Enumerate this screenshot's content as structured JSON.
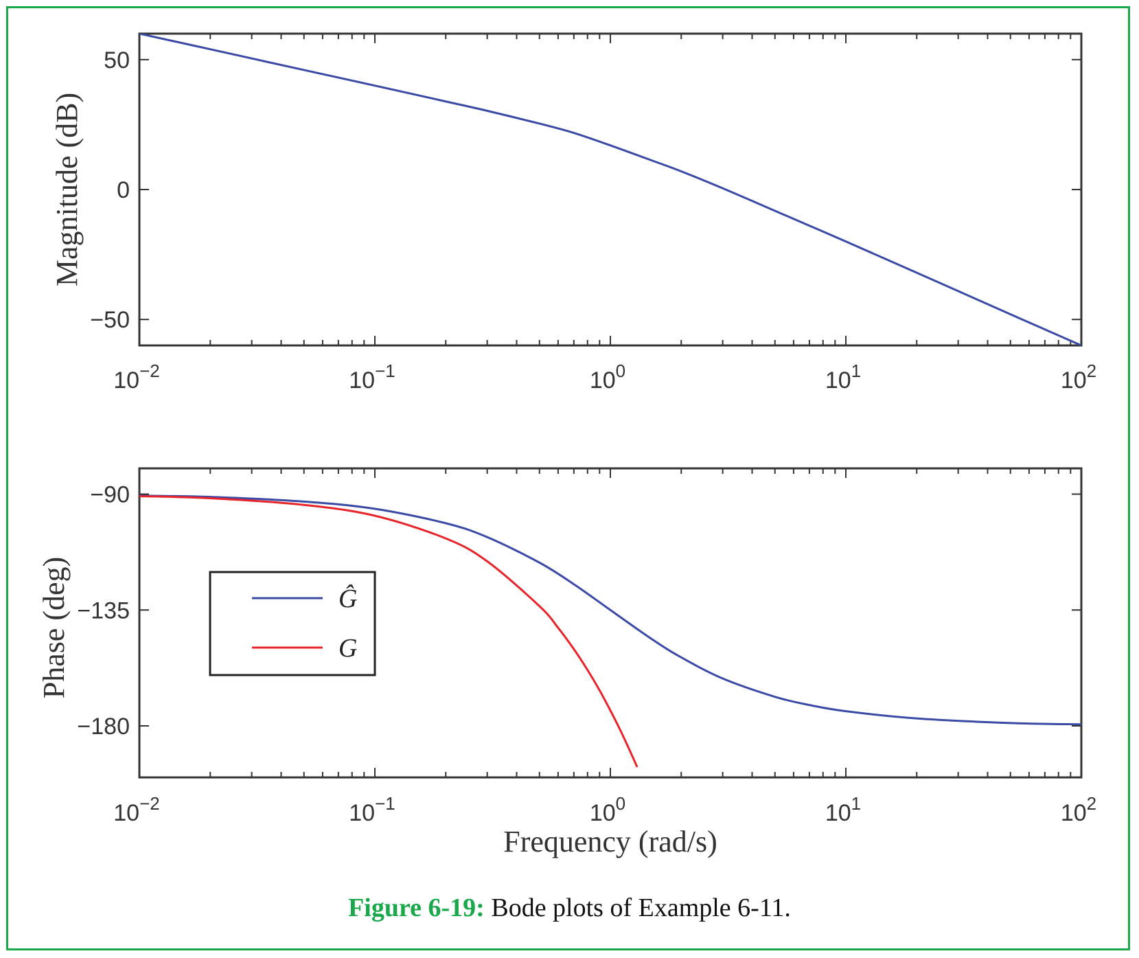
{
  "caption": {
    "label": "Figure 6-19:",
    "text": " Bode plots of Example 6-11."
  },
  "colors": {
    "frame": "#1aa84b",
    "ghat": "#3a4aa6",
    "g": "#e8242b",
    "axes": "#333333"
  },
  "chart_data": [
    {
      "type": "line",
      "scale": {
        "x": "log",
        "y": "linear"
      },
      "xlim": [
        0.01,
        100
      ],
      "ylim": [
        -60,
        60
      ],
      "ylabel": "Magnitude (dB)",
      "xlabel": "",
      "xtick_labels": [
        {
          "value": 0.01,
          "base": "10",
          "exp": "−2"
        },
        {
          "value": 0.1,
          "base": "10",
          "exp": "−1"
        },
        {
          "value": 1,
          "base": "10",
          "exp": "0"
        },
        {
          "value": 10,
          "base": "10",
          "exp": "1"
        },
        {
          "value": 100,
          "base": "10",
          "exp": "2"
        }
      ],
      "ytick_labels": [
        {
          "value": 50,
          "label": "50"
        },
        {
          "value": 0,
          "label": "0"
        },
        {
          "value": -50,
          "label": "−50"
        }
      ],
      "grid": false,
      "series": [
        {
          "color": "#3a4aa6",
          "x": [
            0.01,
            0.02,
            0.05,
            0.1,
            0.2,
            0.3,
            0.5,
            0.7,
            1,
            1.5,
            2,
            3,
            5,
            7,
            10,
            20,
            50,
            100
          ],
          "y": [
            60,
            54,
            46,
            40,
            33.9,
            30.3,
            25.4,
            21.8,
            17,
            11.2,
            7,
            0.5,
            -8.2,
            -13.9,
            -20,
            -32,
            -48,
            -60
          ]
        }
      ]
    },
    {
      "type": "line",
      "scale": {
        "x": "log",
        "y": "linear"
      },
      "xlim": [
        0.01,
        100
      ],
      "ylim": [
        -200,
        -80
      ],
      "ylabel": "Phase (deg)",
      "xlabel": "Frequency (rad/s)",
      "xtick_labels": [
        {
          "value": 0.01,
          "base": "10",
          "exp": "−2"
        },
        {
          "value": 0.1,
          "base": "10",
          "exp": "−1"
        },
        {
          "value": 1,
          "base": "10",
          "exp": "0"
        },
        {
          "value": 10,
          "base": "10",
          "exp": "1"
        },
        {
          "value": 100,
          "base": "10",
          "exp": "2"
        }
      ],
      "ytick_labels": [
        {
          "value": -90,
          "label": "−90"
        },
        {
          "value": -135,
          "label": "−135"
        },
        {
          "value": -180,
          "label": "−180"
        }
      ],
      "grid": false,
      "legend": {
        "position": "left",
        "entries": [
          "Ĝ",
          "G"
        ]
      },
      "series": [
        {
          "name": "Ĝ",
          "color": "#3a4aa6",
          "x": [
            0.01,
            0.02,
            0.05,
            0.1,
            0.2,
            0.3,
            0.5,
            0.7,
            1,
            1.5,
            2,
            3,
            5,
            7,
            10,
            20,
            50,
            100
          ],
          "y": [
            -90.6,
            -91.1,
            -92.9,
            -95.7,
            -101.3,
            -106.7,
            -116.6,
            -125,
            -135,
            -146.3,
            -153.4,
            -161.6,
            -168.7,
            -171.9,
            -174.3,
            -177.1,
            -178.9,
            -179.4
          ]
        },
        {
          "name": "G",
          "color": "#e8242b",
          "x": [
            0.01,
            0.02,
            0.05,
            0.1,
            0.2,
            0.3,
            0.5,
            0.6,
            0.7,
            0.8,
            0.9,
            1,
            1.1,
            1.2,
            1.3
          ],
          "y": [
            -90.8,
            -91.6,
            -94.2,
            -98.4,
            -107.2,
            -116.1,
            -133.5,
            -141.9,
            -150.2,
            -158.3,
            -166.2,
            -174,
            -181.5,
            -188.9,
            -196
          ]
        }
      ]
    }
  ]
}
